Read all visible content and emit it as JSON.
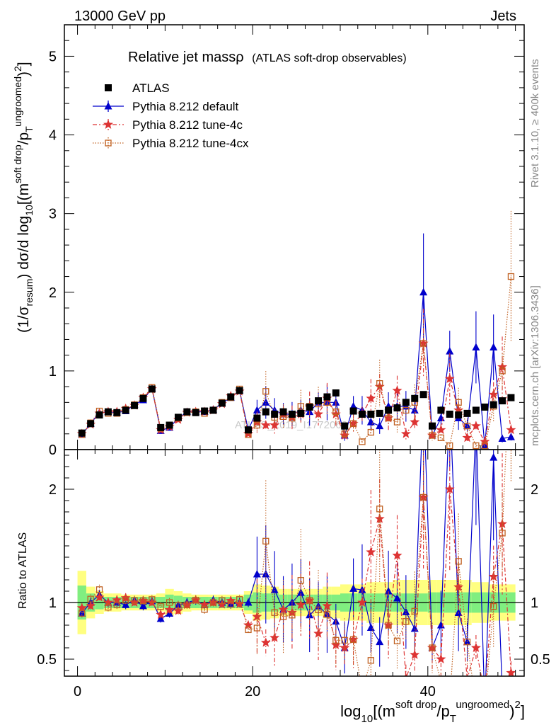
{
  "header": {
    "energy_label": "13000 GeV pp",
    "process_label": "Jets"
  },
  "side_labels": {
    "rivet": "Rivet 3.1.10, ≥ 400k events",
    "site": "mcplots.cern.ch [arXiv:1306.3436]"
  },
  "watermark": "ATLAS_2019_I1772062",
  "chart_data": {
    "type": "scatter",
    "title": "Relative jet massρ",
    "subtitle": "(ATLAS soft-drop observables)",
    "xlabel": "log10[(m^soft drop/pT^ungroomed)^2]",
    "ylabel_top": "(1/σresum) dσ/d log10[(m^soft drop/pT^ungroomed)^2]",
    "ylabel_bottom": "Ratio to ATLAS",
    "xlim": [
      -1.5,
      51
    ],
    "ylim_top": [
      0,
      5.4
    ],
    "ylim_ratio": [
      0.35,
      2.35
    ],
    "x_ticks": [
      0,
      20,
      40
    ],
    "y_ticks_top": [
      0,
      1,
      2,
      3,
      4,
      5
    ],
    "y_ticks_ratio": [
      0.5,
      1,
      2
    ],
    "x_edges": [
      0,
      1,
      2,
      3,
      4,
      5,
      6,
      7,
      8,
      9,
      10,
      11,
      12,
      13,
      14,
      15,
      16,
      17,
      18,
      19,
      20,
      21,
      22,
      23,
      24,
      25,
      26,
      27,
      28,
      29,
      30,
      31,
      32,
      33,
      34,
      35,
      36,
      37,
      38,
      39,
      40,
      41,
      42,
      43,
      44,
      45,
      46,
      47,
      48,
      49,
      50
    ],
    "x": [
      0.5,
      1.5,
      2.5,
      3.5,
      4.5,
      5.5,
      6.5,
      7.5,
      8.5,
      9.5,
      10.5,
      11.5,
      12.5,
      13.5,
      14.5,
      15.5,
      16.5,
      17.5,
      18.5,
      19.5,
      20.5,
      21.5,
      22.5,
      23.5,
      24.5,
      25.5,
      26.5,
      27.5,
      28.5,
      29.5,
      30.5,
      31.5,
      32.5,
      33.5,
      34.5,
      35.5,
      36.5,
      37.5,
      38.5,
      39.5,
      40.5,
      41.5,
      42.5,
      43.5,
      44.5,
      45.5,
      46.5,
      47.5,
      48.5,
      49.5
    ],
    "band_inner": [
      0.15,
      0.08,
      0.06,
      0.05,
      0.05,
      0.05,
      0.05,
      0.05,
      0.05,
      0.05,
      0.07,
      0.06,
      0.05,
      0.05,
      0.05,
      0.05,
      0.05,
      0.05,
      0.05,
      0.07,
      0.09,
      0.08,
      0.08,
      0.07,
      0.07,
      0.07,
      0.07,
      0.07,
      0.07,
      0.07,
      0.08,
      0.08,
      0.08,
      0.08,
      0.08,
      0.08,
      0.08,
      0.08,
      0.08,
      0.08,
      0.09,
      0.09,
      0.09,
      0.09,
      0.09,
      0.09,
      0.09,
      0.09,
      0.09,
      0.09
    ],
    "band_outer": [
      0.28,
      0.14,
      0.1,
      0.08,
      0.08,
      0.07,
      0.07,
      0.07,
      0.07,
      0.08,
      0.12,
      0.1,
      0.08,
      0.07,
      0.07,
      0.07,
      0.07,
      0.07,
      0.07,
      0.1,
      0.16,
      0.15,
      0.14,
      0.12,
      0.12,
      0.12,
      0.12,
      0.12,
      0.14,
      0.14,
      0.16,
      0.16,
      0.16,
      0.18,
      0.18,
      0.18,
      0.2,
      0.2,
      0.2,
      0.2,
      0.2,
      0.2,
      0.2,
      0.2,
      0.2,
      0.18,
      0.18,
      0.16,
      0.16,
      0.16
    ],
    "series": [
      {
        "name": "ATLAS",
        "color": "#000000",
        "values": [
          0.21,
          0.33,
          0.44,
          0.48,
          0.47,
          0.5,
          0.56,
          0.65,
          0.77,
          0.28,
          0.31,
          0.41,
          0.48,
          0.47,
          0.49,
          0.5,
          0.59,
          0.67,
          0.75,
          0.25,
          0.4,
          0.48,
          0.45,
          0.48,
          0.45,
          0.46,
          0.54,
          0.62,
          0.67,
          0.72,
          0.3,
          0.49,
          0.45,
          0.45,
          0.46,
          0.5,
          0.53,
          0.6,
          0.65,
          0.7,
          0.3,
          0.5,
          0.45,
          0.44,
          0.46,
          0.5,
          0.54,
          0.57,
          0.62,
          0.66
        ]
      },
      {
        "name": "Pythia 8.212 default",
        "color": "#0000cc",
        "values": [
          0.19,
          0.33,
          0.47,
          0.48,
          0.47,
          0.49,
          0.57,
          0.63,
          0.78,
          0.24,
          0.28,
          0.4,
          0.48,
          0.48,
          0.48,
          0.51,
          0.59,
          0.66,
          0.75,
          0.25,
          0.5,
          0.6,
          0.5,
          0.45,
          0.45,
          0.5,
          0.48,
          0.6,
          0.6,
          0.6,
          0.18,
          0.55,
          0.5,
          0.35,
          0.3,
          0.55,
          0.55,
          0.55,
          0.5,
          2.0,
          0.18,
          0.4,
          1.25,
          0.4,
          0.3,
          1.3,
          0.05,
          1.3,
          0.14,
          0.16
        ]
      },
      {
        "name": "Pythia 8.212 tune-4c",
        "color": "#dd3333",
        "values": [
          0.2,
          0.32,
          0.46,
          0.48,
          0.48,
          0.52,
          0.56,
          0.66,
          0.77,
          0.25,
          0.29,
          0.38,
          0.47,
          0.48,
          0.48,
          0.5,
          0.58,
          0.68,
          0.74,
          0.2,
          0.35,
          0.31,
          0.31,
          0.45,
          0.41,
          0.45,
          0.55,
          0.45,
          0.65,
          0.45,
          0.18,
          0.33,
          0.45,
          0.65,
          0.8,
          0.4,
          0.75,
          0.2,
          0.35,
          1.35,
          0.18,
          0.25,
          0.9,
          0.5,
          0.15,
          0.3,
          0.1,
          0.7,
          1.05,
          0.25
        ]
      },
      {
        "name": "Pythia 8.212 tune-4cx",
        "color": "#c06020",
        "values": [
          0.19,
          0.34,
          0.49,
          0.46,
          0.46,
          0.51,
          0.57,
          0.66,
          0.79,
          0.27,
          0.31,
          0.4,
          0.47,
          0.48,
          0.46,
          0.5,
          0.6,
          0.66,
          0.77,
          0.19,
          0.31,
          0.74,
          0.41,
          0.42,
          0.4,
          0.55,
          0.55,
          0.58,
          0.6,
          0.48,
          0.2,
          0.33,
          0.1,
          0.22,
          0.84,
          0.4,
          0.35,
          0.5,
          0.6,
          1.35,
          0.18,
          0.15,
          0.05,
          0.6,
          0.3,
          0.05,
          0.05,
          0.55,
          1.0,
          2.2
        ]
      }
    ],
    "legend": [
      "ATLAS",
      "Pythia 8.212 default",
      "Pythia 8.212 tune-4c",
      "Pythia 8.212 tune-4cx"
    ],
    "legend_position": "top-left"
  }
}
